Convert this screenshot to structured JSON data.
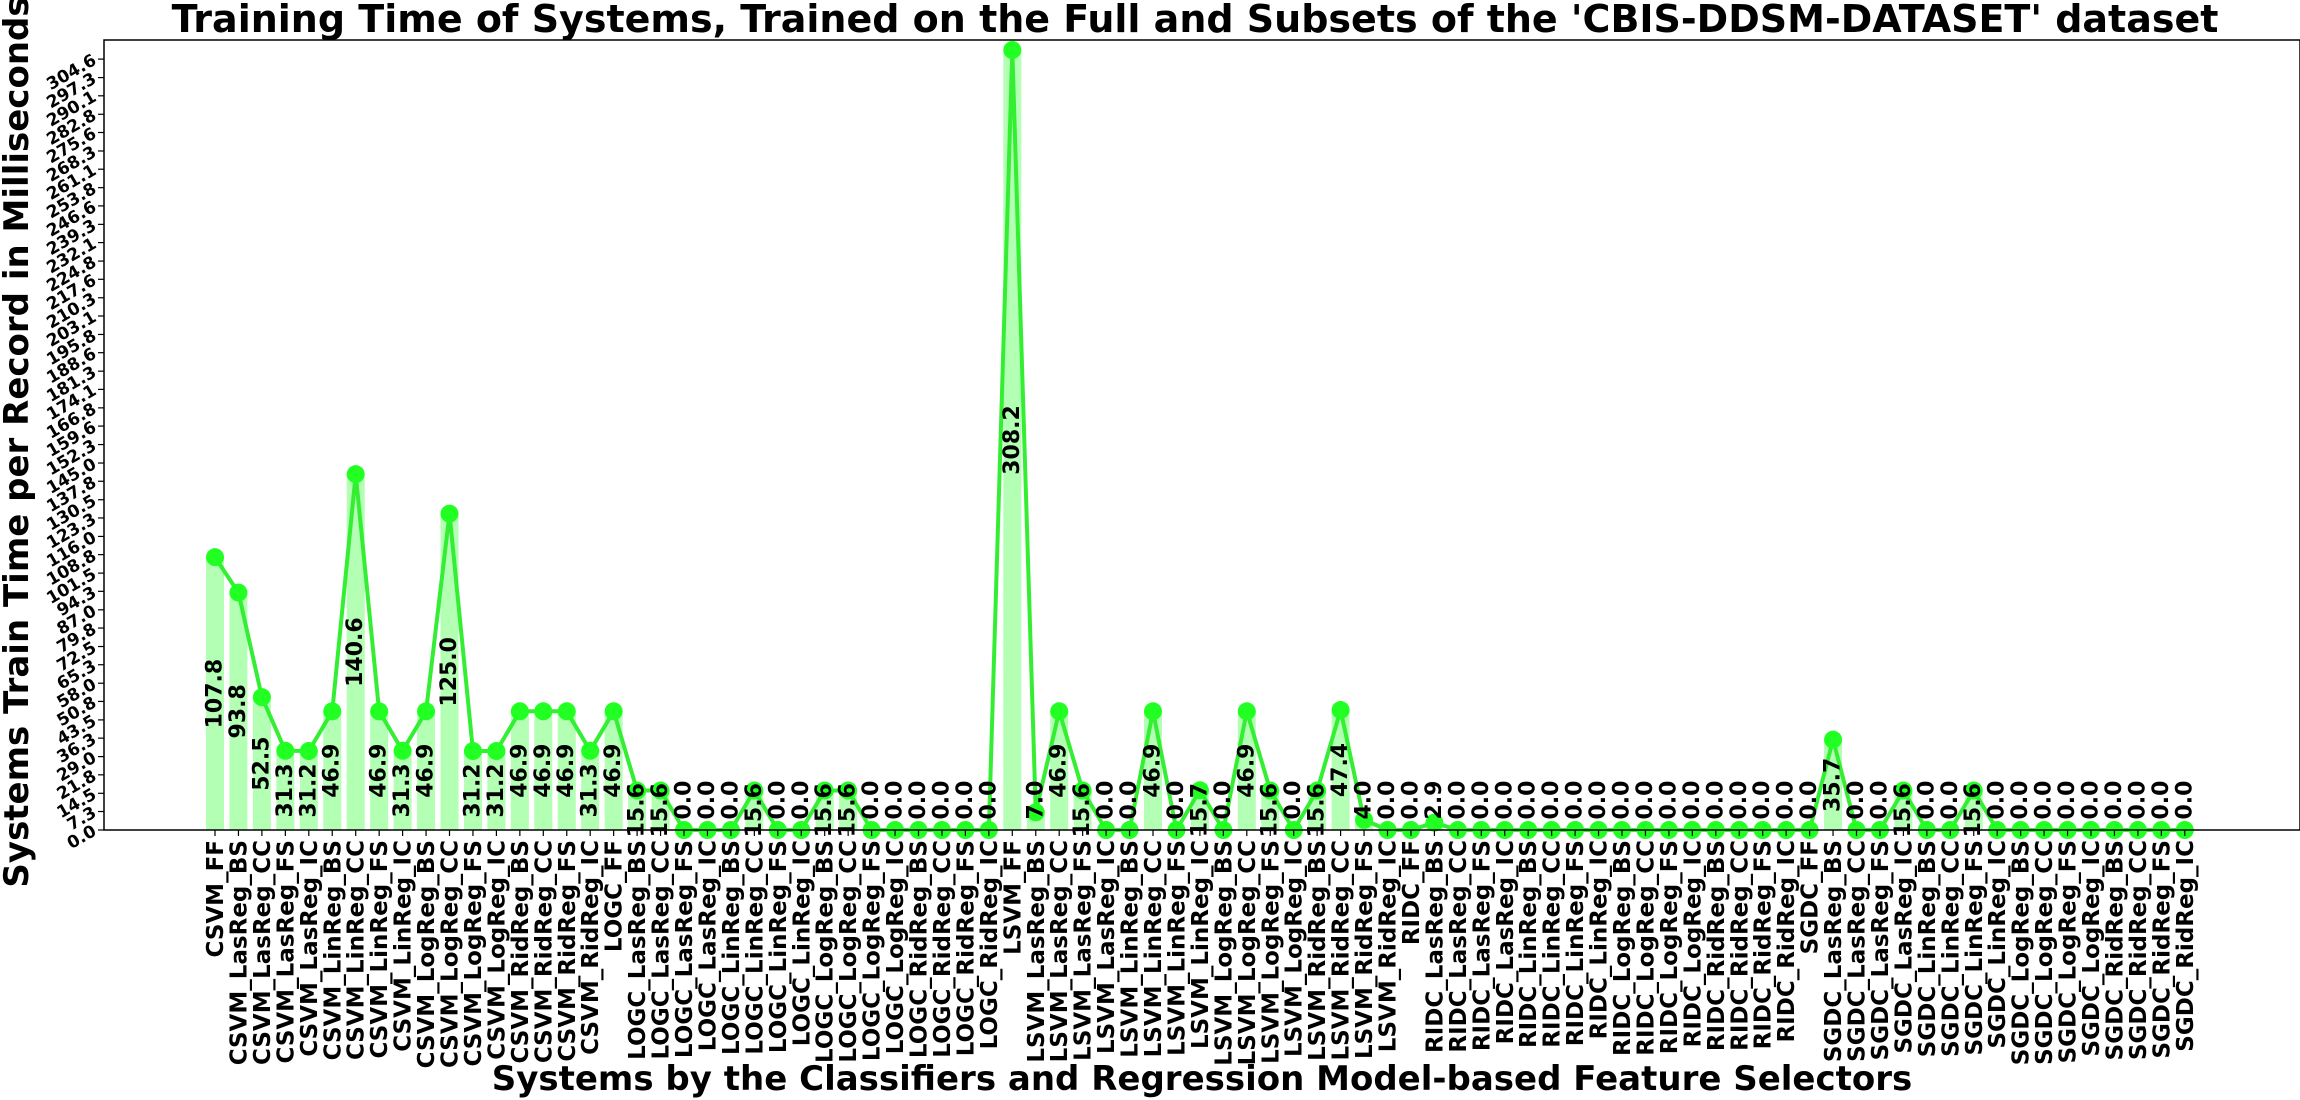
{
  "colors": {
    "line": "#33ee33",
    "marker": "#22ff22",
    "bar": "#b3ffb3",
    "axes": "#000000"
  },
  "chart_data": {
    "type": "line",
    "title": "Training Time of Systems, Trained on the Full and Subsets of the 'CBIS-DDSM-DATASET' dataset",
    "xlabel": "Systems by the Classifiers and Regression Model-based Feature Selectors",
    "ylabel": "Systems Train Time per Record in Milliseconds",
    "ylim": [
      0,
      308.2
    ],
    "yticks": [
      "0.0",
      "7.3",
      "14.5",
      "21.8",
      "29.0",
      "36.3",
      "43.5",
      "50.8",
      "58.0",
      "65.3",
      "72.5",
      "79.8",
      "87.0",
      "94.3",
      "101.5",
      "108.8",
      "116.0",
      "123.3",
      "130.5",
      "137.8",
      "145.0",
      "152.3",
      "159.6",
      "166.8",
      "174.1",
      "181.3",
      "188.6",
      "195.8",
      "203.1",
      "210.3",
      "217.6",
      "224.8",
      "232.1",
      "239.3",
      "246.6",
      "253.8",
      "261.1",
      "268.3",
      "275.6",
      "282.8",
      "290.1",
      "297.3",
      "304.6"
    ],
    "grid": false,
    "legend": "none",
    "categories": [
      "CSVM_FF",
      "CSVM_LasReg_BS",
      "CSVM_LasReg_CC",
      "CSVM_LasReg_FS",
      "CSVM_LasReg_IC",
      "CSVM_LinReg_BS",
      "CSVM_LinReg_CC",
      "CSVM_LinReg_FS",
      "CSVM_LinReg_IC",
      "CSVM_LogReg_BS",
      "CSVM_LogReg_CC",
      "CSVM_LogReg_FS",
      "CSVM_LogReg_IC",
      "CSVM_RidReg_BS",
      "CSVM_RidReg_CC",
      "CSVM_RidReg_FS",
      "CSVM_RidReg_IC",
      "LOGC_FF",
      "LOGC_LasReg_BS",
      "LOGC_LasReg_CC",
      "LOGC_LasReg_FS",
      "LOGC_LasReg_IC",
      "LOGC_LinReg_BS",
      "LOGC_LinReg_CC",
      "LOGC_LinReg_FS",
      "LOGC_LinReg_IC",
      "LOGC_LogReg_BS",
      "LOGC_LogReg_CC",
      "LOGC_LogReg_FS",
      "LOGC_LogReg_IC",
      "LOGC_RidReg_BS",
      "LOGC_RidReg_CC",
      "LOGC_RidReg_FS",
      "LOGC_RidReg_IC",
      "LSVM_FF",
      "LSVM_LasReg_BS",
      "LSVM_LasReg_CC",
      "LSVM_LasReg_FS",
      "LSVM_LasReg_IC",
      "LSVM_LinReg_BS",
      "LSVM_LinReg_CC",
      "LSVM_LinReg_FS",
      "LSVM_LinReg_IC",
      "LSVM_LogReg_BS",
      "LSVM_LogReg_CC",
      "LSVM_LogReg_FS",
      "LSVM_LogReg_IC",
      "LSVM_RidReg_BS",
      "LSVM_RidReg_CC",
      "LSVM_RidReg_FS",
      "LSVM_RidReg_IC",
      "RIDC_FF",
      "RIDC_LasReg_BS",
      "RIDC_LasReg_CC",
      "RIDC_LasReg_FS",
      "RIDC_LasReg_IC",
      "RIDC_LinReg_BS",
      "RIDC_LinReg_CC",
      "RIDC_LinReg_FS",
      "RIDC_LinReg_IC",
      "RIDC_LogReg_BS",
      "RIDC_LogReg_CC",
      "RIDC_LogReg_FS",
      "RIDC_LogReg_IC",
      "RIDC_RidReg_BS",
      "RIDC_RidReg_CC",
      "RIDC_RidReg_FS",
      "RIDC_RidReg_IC",
      "SGDC_FF",
      "SGDC_LasReg_BS",
      "SGDC_LasReg_CC",
      "SGDC_LasReg_FS",
      "SGDC_LasReg_IC",
      "SGDC_LinReg_BS",
      "SGDC_LinReg_CC",
      "SGDC_LinReg_FS",
      "SGDC_LinReg_IC",
      "SGDC_LogReg_BS",
      "SGDC_LogReg_CC",
      "SGDC_LogReg_FS",
      "SGDC_LogReg_IC",
      "SGDC_RidReg_BS",
      "SGDC_RidReg_CC",
      "SGDC_RidReg_FS",
      "SGDC_RidReg_IC"
    ],
    "values": [
      107.8,
      93.8,
      52.5,
      31.3,
      31.2,
      46.9,
      140.6,
      46.9,
      31.3,
      46.9,
      125.0,
      31.2,
      31.2,
      46.9,
      46.9,
      46.9,
      31.3,
      46.9,
      15.6,
      15.6,
      0.0,
      0.0,
      0.0,
      15.6,
      0.0,
      0.0,
      15.6,
      15.6,
      0.0,
      0.0,
      0.0,
      0.0,
      0.0,
      0.0,
      308.2,
      7.0,
      46.9,
      15.6,
      0.0,
      0.0,
      46.9,
      0.0,
      15.7,
      0.0,
      46.9,
      15.6,
      0.0,
      15.6,
      47.4,
      4.0,
      0.0,
      0.0,
      2.9,
      0.0,
      0.0,
      0.0,
      0.0,
      0.0,
      0.0,
      0.0,
      0.0,
      0.0,
      0.0,
      0.0,
      0.0,
      0.0,
      0.0,
      0.0,
      0.0,
      35.7,
      0.0,
      0.0,
      15.6,
      0.0,
      0.0,
      15.6,
      0.0,
      0.0,
      0.0,
      0.0,
      0.0,
      0.0,
      0.0,
      0.0,
      0.0
    ],
    "value_labels": [
      "107.8",
      "93.8",
      "52.5",
      "31.3",
      "31.2",
      "46.9",
      "140.6",
      "46.9",
      "31.3",
      "46.9",
      "125.0",
      "31.2",
      "31.2",
      "46.9",
      "46.9",
      "46.9",
      "31.3",
      "46.9",
      "15.6",
      "15.6",
      "0.0",
      "0.0",
      "0.0",
      "15.6",
      "0.0",
      "0.0",
      "15.6",
      "15.6",
      "0.0",
      "0.0",
      "0.0",
      "0.0",
      "0.0",
      "0.0",
      "308.2",
      "7.0",
      "46.9",
      "15.6",
      "0.0",
      "0.0",
      "46.9",
      "0.0",
      "15.7",
      "0.0",
      "46.9",
      "15.6",
      "0.0",
      "15.6",
      "47.4",
      "4.0",
      "0.0",
      "0.0",
      "2.9",
      "0.0",
      "0.0",
      "0.0",
      "0.0",
      "0.0",
      "0.0",
      "0.0",
      "0.0",
      "0.0",
      "0.0",
      "0.0",
      "0.0",
      "0.0",
      "0.0",
      "0.0",
      "0.0",
      "35.7",
      "0.0",
      "0.0",
      "15.6",
      "0.0",
      "0.0",
      "15.6",
      "0.0",
      "0.0",
      "0.0",
      "0.0",
      "0.0",
      "0.0",
      "0.0",
      "0.0",
      "0.0"
    ]
  }
}
